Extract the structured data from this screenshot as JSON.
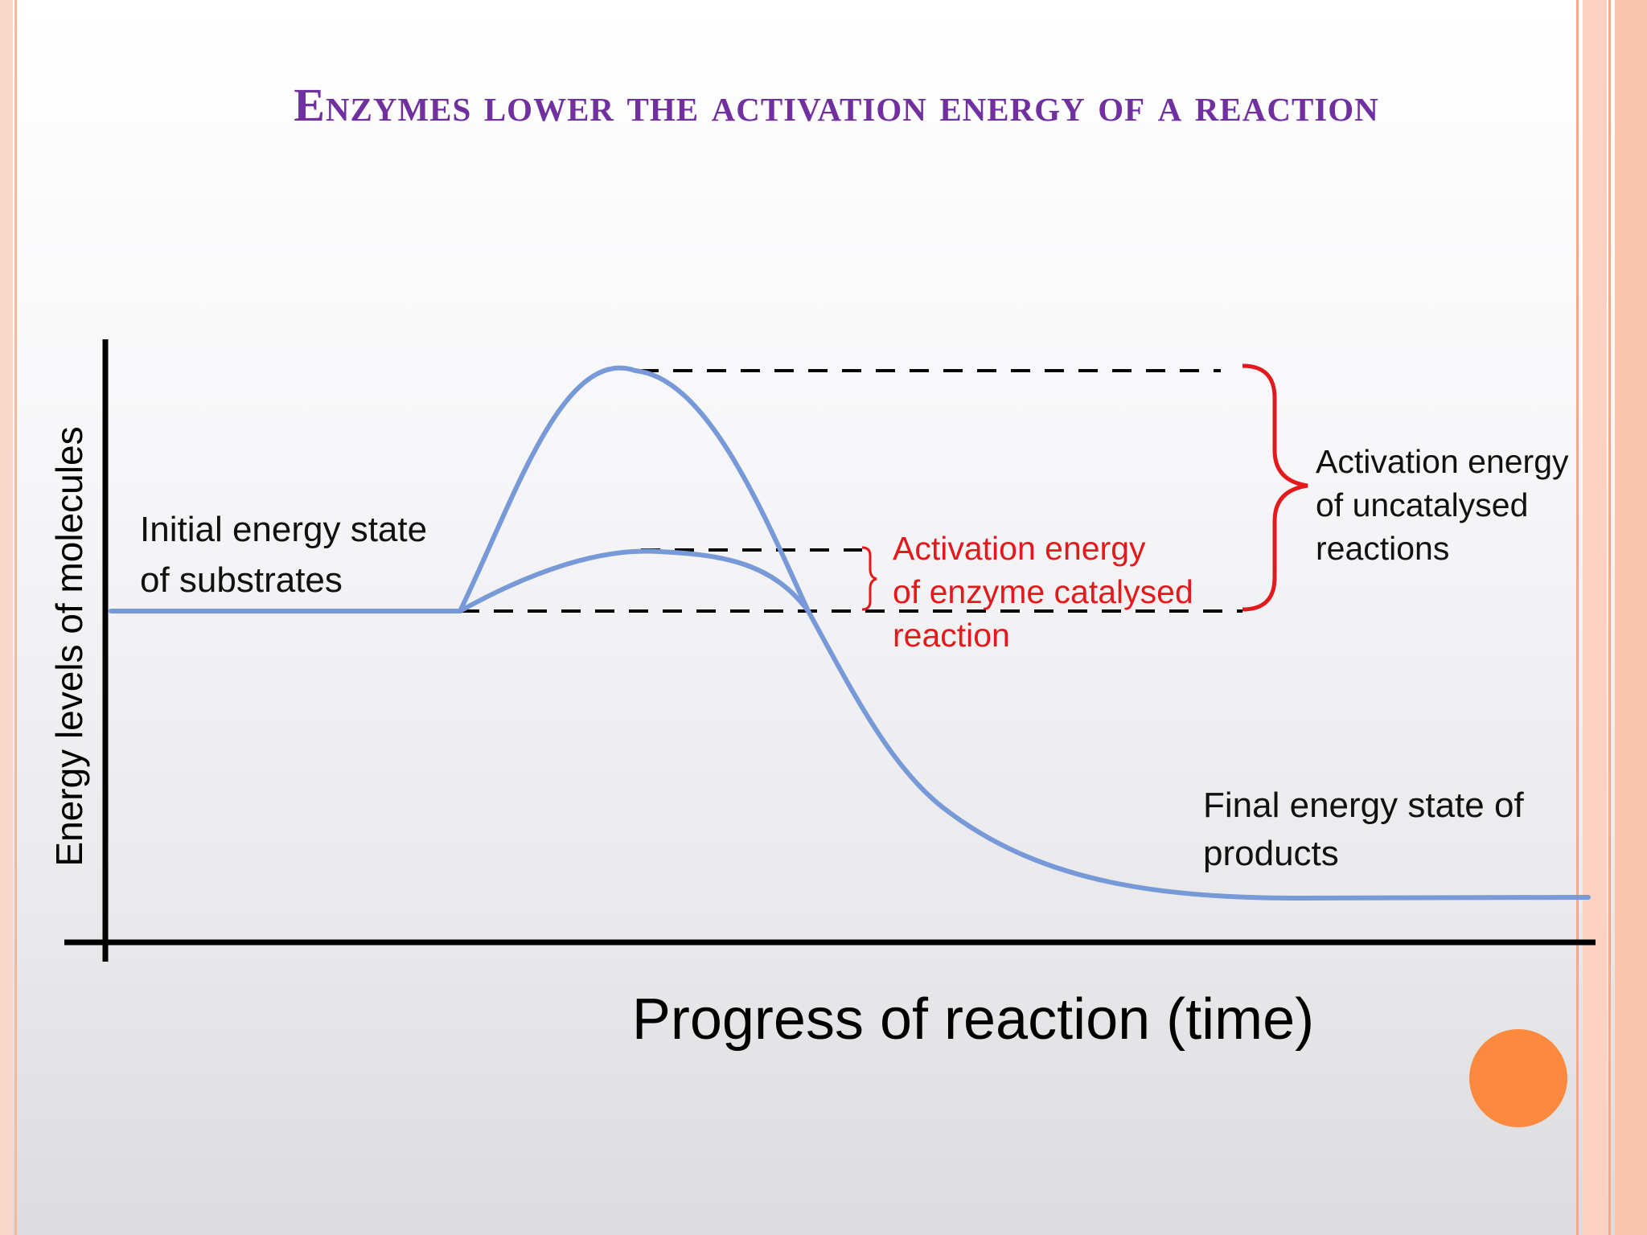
{
  "title": "Enzymes lower the activation energy of a reaction",
  "y_axis_label": "Energy levels of molecules",
  "x_axis_label": "Progress of reaction (time)",
  "labels": {
    "initial": [
      "Initial energy state",
      "of substrates"
    ],
    "final": [
      "Final energy state of",
      "products"
    ],
    "uncatalysed": [
      "Activation energy",
      "of uncatalysed",
      "reactions"
    ],
    "catalysed": [
      "Activation energy",
      "of enzyme catalysed",
      "reaction"
    ]
  },
  "colors": {
    "title": "#7030a0",
    "curve": "#7799d8",
    "catalysed_text": "#e3191b",
    "brace": "#e3191b",
    "axes": "#000000",
    "decoration_circle": "#fb8a3e"
  }
}
